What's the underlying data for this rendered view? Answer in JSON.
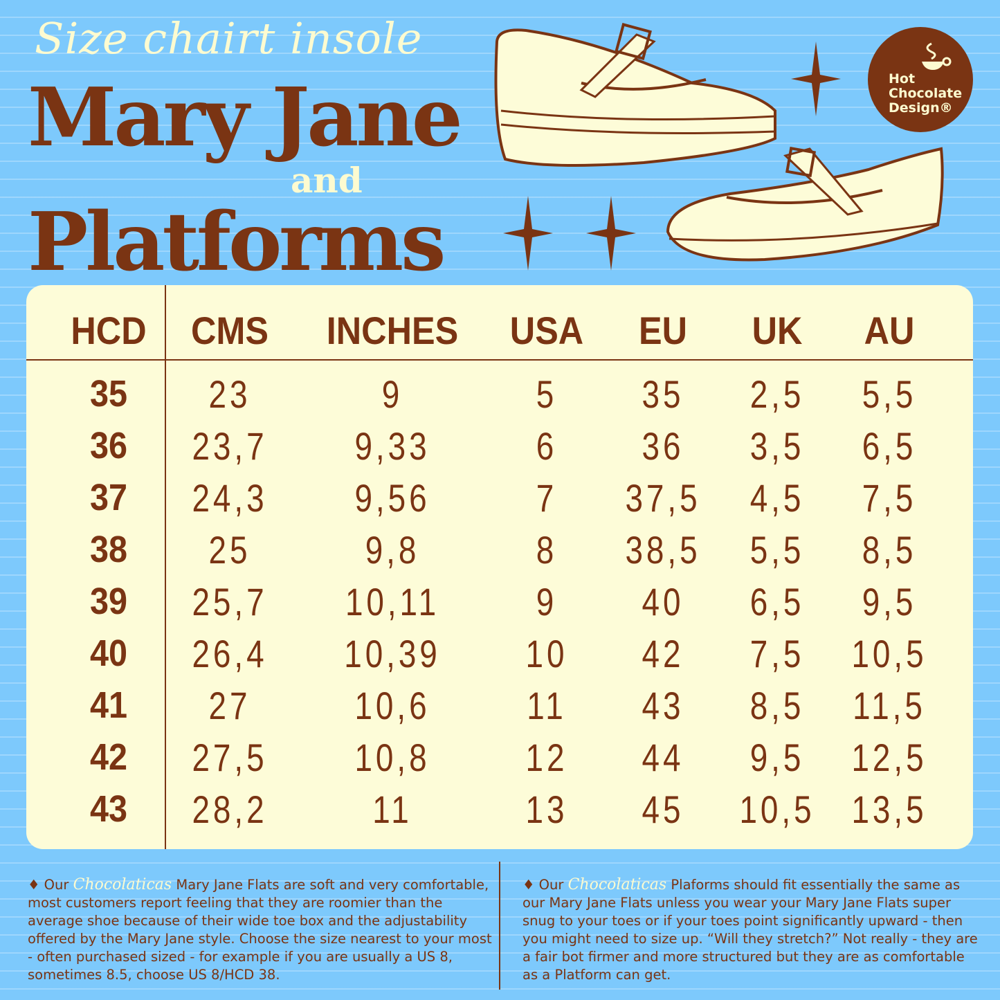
{
  "header": {
    "script_title": "Size chairt insole",
    "title_line1": "Mary Jane",
    "title_and": "and",
    "title_line2": "Platforms"
  },
  "logo": {
    "line1": "Hot",
    "line2": "Chocolate",
    "line3": "Design®"
  },
  "colors": {
    "background": "#7dc9fc",
    "brown": "#7a3413",
    "cream": "#fdfcd8"
  },
  "table": {
    "headers": [
      "HCD",
      "CMS",
      "INCHES",
      "USA",
      "EU",
      "UK",
      "AU"
    ],
    "rows": [
      [
        "35",
        "23",
        "9",
        "5",
        "35",
        "2,5",
        "5,5"
      ],
      [
        "36",
        "23,7",
        "9,33",
        "6",
        "36",
        "3,5",
        "6,5"
      ],
      [
        "37",
        "24,3",
        "9,56",
        "7",
        "37,5",
        "4,5",
        "7,5"
      ],
      [
        "38",
        "25",
        "9,8",
        "8",
        "38,5",
        "5,5",
        "8,5"
      ],
      [
        "39",
        "25,7",
        "10,11",
        "9",
        "40",
        "6,5",
        "9,5"
      ],
      [
        "40",
        "26,4",
        "10,39",
        "10",
        "42",
        "7,5",
        "10,5"
      ],
      [
        "41",
        "27",
        "10,6",
        "11",
        "43",
        "8,5",
        "11,5"
      ],
      [
        "42",
        "27,5",
        "10,8",
        "12",
        "44",
        "9,5",
        "12,5"
      ],
      [
        "43",
        "28,2",
        "11",
        "13",
        "45",
        "10,5",
        "13,5"
      ]
    ]
  },
  "notes": {
    "brand": "Chocolaticas",
    "left_prefix": "♦ Our",
    "left_text": "Mary Jane Flats are soft and very comfortable, most customers report feeling that they are roomier than the average shoe because of their wide toe box and the adjustability offered by the Mary Jane style. Choose the size nearest to your most - often purchased sized - for example if you are usually a US 8, sometimes 8.5, choose US 8/HCD 38.",
    "right_prefix": "♦ Our",
    "right_text": "Plaforms should fit essentially the same as our Mary Jane Flats unless you wear your Mary Jane Flats super snug to your toes or if your toes point significantly upward - then you might need to size  up. “Will they stretch?” Not really - they are a fair bot firmer and more structured but they are as comfortable as a Platform can get."
  }
}
